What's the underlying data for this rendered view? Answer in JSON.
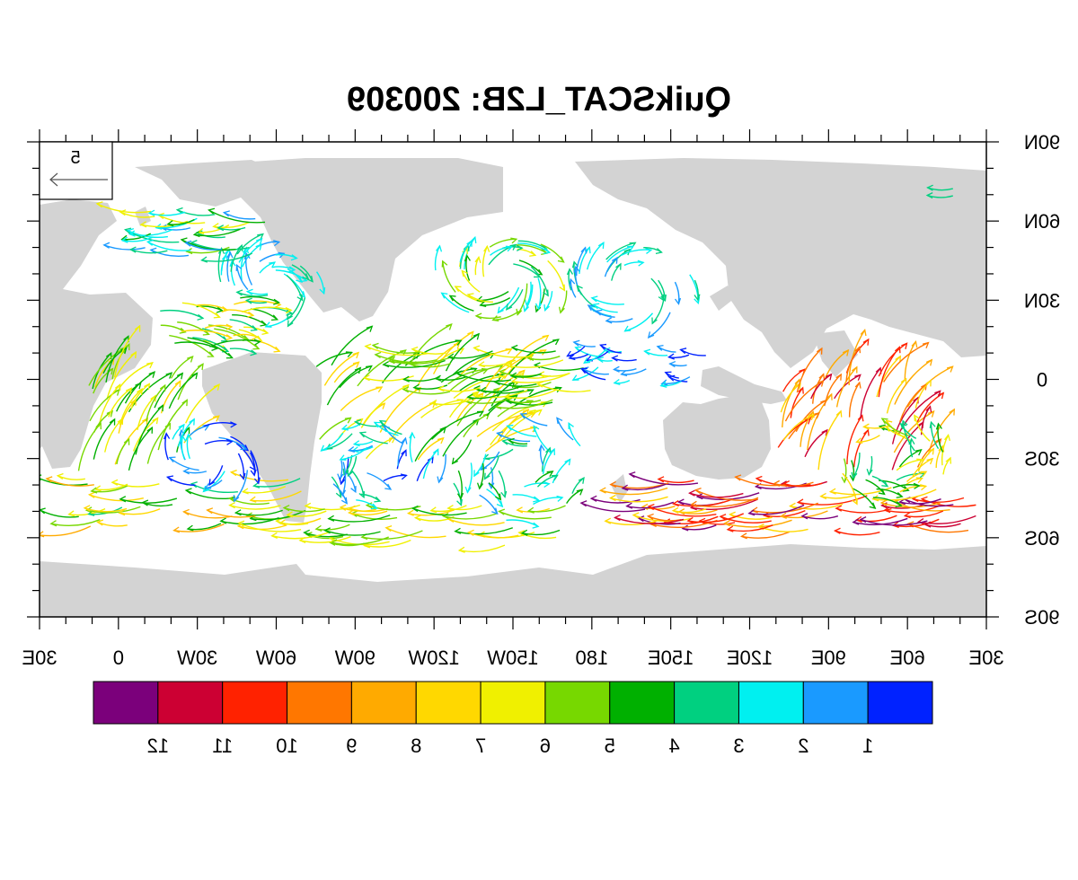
{
  "title": "QuikSCAT_L2B: 200309",
  "mirrored": true,
  "map": {
    "lat_labels": [
      "90N",
      "60N",
      "30N",
      "0",
      "30S",
      "60S",
      "90S"
    ],
    "lon_labels": [
      "30E",
      "0",
      "30W",
      "60W",
      "90W",
      "120W",
      "150W",
      "180",
      "150E",
      "120E",
      "90E",
      "60E",
      "30E"
    ],
    "land_color": "#d3d3d3",
    "ocean_color": "#ffffff"
  },
  "reference_vector": {
    "label": "5"
  },
  "colorbar": {
    "colors": [
      "#7b007b",
      "#cc0033",
      "#ff2200",
      "#ff7700",
      "#ffaa00",
      "#ffd800",
      "#f0f000",
      "#77d800",
      "#00b000",
      "#00d080",
      "#00f0f0",
      "#1a9aff",
      "#0022ff"
    ],
    "labels": [
      "12",
      "11",
      "10",
      "9",
      "8",
      "7",
      "6",
      "5",
      "4",
      "3",
      "2",
      "1"
    ]
  },
  "icons": {
    "map": "world-map-icon",
    "arrow": "wind-arrow-icon"
  }
}
